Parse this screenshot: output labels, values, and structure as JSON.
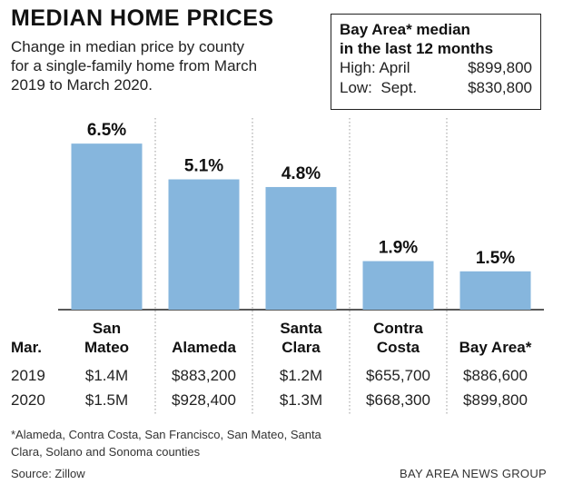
{
  "title": "MEDIAN HOME PRICES",
  "subtitle": "Change in median price by county\nfor a single-family home from March\n2019 to March 2020.",
  "infobox": {
    "heading": "Bay Area* median\nin the last 12 months",
    "high_label": "High: April",
    "high_value": "$899,800",
    "low_label": "Low:  Sept.",
    "low_value": "$830,800"
  },
  "chart_data": {
    "type": "bar",
    "categories": [
      "San\nMateo",
      "Alameda",
      "Santa\nClara",
      "Contra\nCosta",
      "Bay Area*"
    ],
    "values": [
      6.5,
      5.1,
      4.8,
      1.9,
      1.5
    ],
    "data_labels": [
      "6.5%",
      "5.1%",
      "4.8%",
      "1.9%",
      "1.5%"
    ],
    "bar_color": "#86b6dd",
    "ylim": [
      0,
      7.5
    ],
    "grid": false,
    "title": "MEDIAN HOME PRICES"
  },
  "table": {
    "row_header": "Mar.",
    "rows": [
      {
        "year": "2019",
        "values": [
          "$1.4M",
          "$883,200",
          "$1.2M",
          "$655,700",
          "$886,600"
        ]
      },
      {
        "year": "2020",
        "values": [
          "$1.5M",
          "$928,400",
          "$1.3M",
          "$668,300",
          "$899,800"
        ]
      }
    ]
  },
  "footnote": "*Alameda, Contra Costa, San Francisco, San Mateo, Santa Clara, Solano and Sonoma counties",
  "source": "Source: Zillow",
  "credit": "BAY AREA NEWS GROUP"
}
